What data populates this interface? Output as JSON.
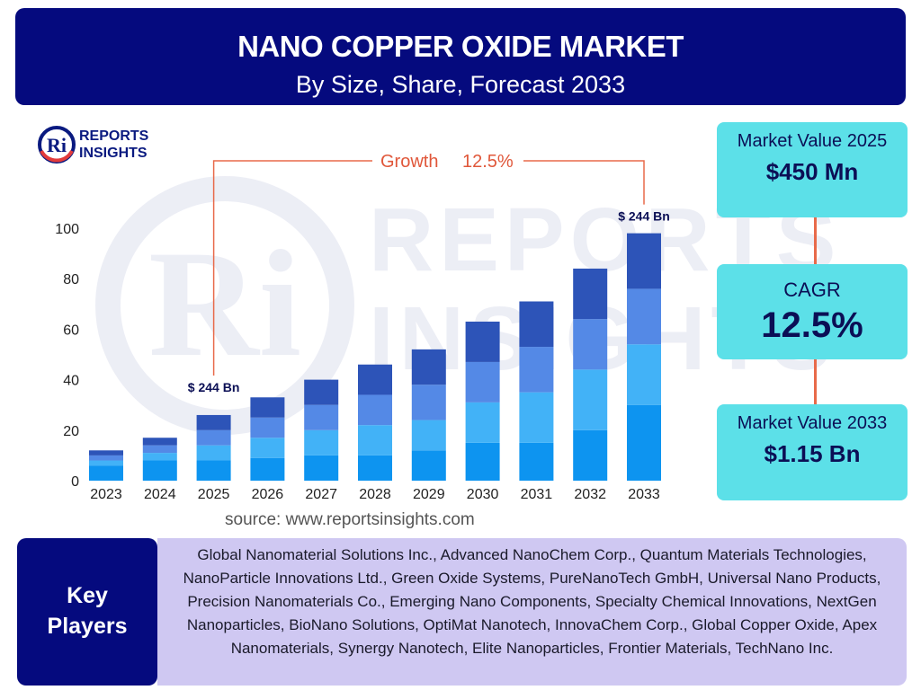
{
  "header": {
    "title": "NANO COPPER OXIDE MARKET",
    "subtitle": "By Size, Share, Forecast 2033"
  },
  "logo": {
    "line1": "REPORTS",
    "line2": "INSIGHTS"
  },
  "chart_data": {
    "type": "bar",
    "stacked": true,
    "categories": [
      "2023",
      "2024",
      "2025",
      "2026",
      "2027",
      "2028",
      "2029",
      "2030",
      "2031",
      "2032",
      "2033"
    ],
    "series": [
      {
        "values": [
          6,
          8,
          8,
          9,
          10,
          10,
          12,
          15,
          15,
          20,
          30
        ]
      },
      {
        "values": [
          2,
          3,
          6,
          8,
          10,
          12,
          12,
          16,
          20,
          24,
          24
        ]
      },
      {
        "values": [
          2,
          3,
          6,
          8,
          10,
          12,
          14,
          16,
          18,
          20,
          22
        ]
      },
      {
        "values": [
          2,
          3,
          6,
          8,
          10,
          12,
          14,
          16,
          18,
          20,
          22
        ]
      }
    ],
    "colors": [
      "#0d94f0",
      "#42b2f7",
      "#5489e6",
      "#2d54b8"
    ],
    "ylim": [
      0,
      100
    ],
    "yticks": [
      0,
      20,
      40,
      60,
      80,
      100
    ],
    "annotations": {
      "growth_label": "Growth",
      "growth_value": "12.5%",
      "start_label": "$ 244 Bn",
      "end_label": "$ 244 Bn"
    },
    "grid": false,
    "legend": "none"
  },
  "stats": {
    "market_value_2025_label": "Market Value 2025",
    "market_value_2025": "$450 Mn",
    "cagr_label": "CAGR",
    "cagr": "12.5%",
    "market_value_2033_label": "Market Value 2033",
    "market_value_2033": "$1.15 Bn"
  },
  "source": "source: www.reportsinsights.com",
  "key_players": {
    "label_line1": "Key",
    "label_line2": "Players",
    "text": "Global Nanomaterial Solutions Inc., Advanced NanoChem Corp., Quantum Materials Technologies, NanoParticle Innovations Ltd., Green Oxide Systems, PureNanoTech GmbH, Universal Nano Products, Precision Nanomaterials Co., Emerging Nano Components, Specialty Chemical Innovations, NextGen Nanoparticles, BioNano Solutions, OptiMat Nanotech, InnovaChem Corp., Global Copper Oxide, Apex Nanomaterials, Synergy Nanotech, Elite Nanoparticles, Frontier Materials, TechNano Inc."
  }
}
